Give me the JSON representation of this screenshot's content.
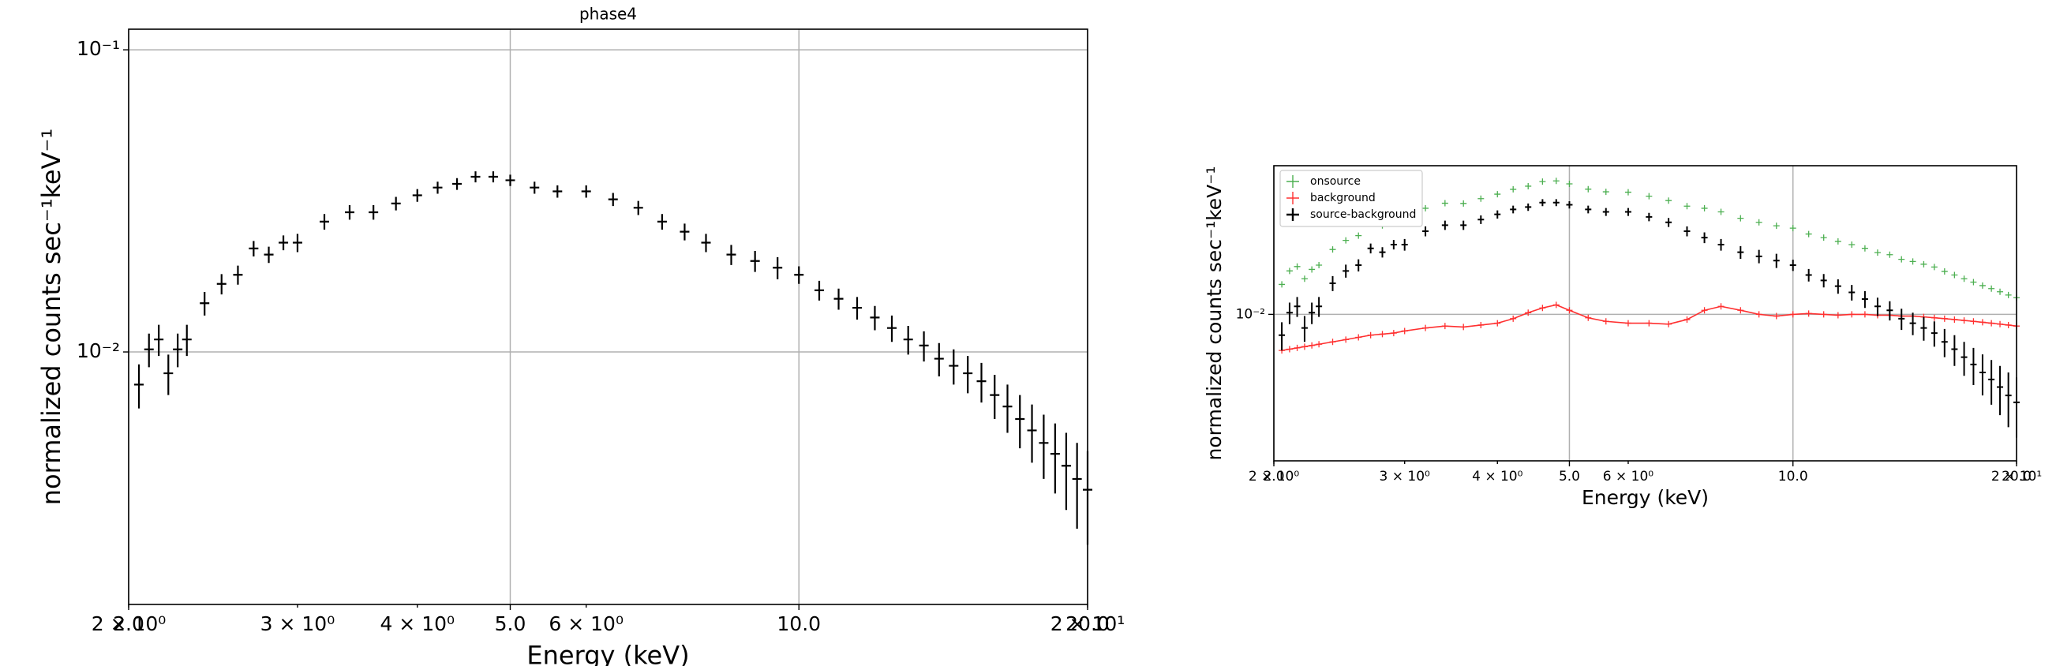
{
  "chart_data": [
    {
      "type": "errorbar",
      "title": "phase4",
      "xlabel": "Energy (keV)",
      "ylabel": "normalized counts sec⁻¹keV⁻¹",
      "xscale": "log",
      "yscale": "log",
      "grid": true,
      "xlim": [
        2.0,
        20.0
      ],
      "ylim": [
        0.00146,
        0.117
      ],
      "xticks": [
        {
          "value": 2.0,
          "label": "2.0"
        },
        {
          "value": 5.0,
          "label": "5.0"
        },
        {
          "value": 10.0,
          "label": "10.0"
        },
        {
          "value": 20.0,
          "label": "20.0"
        }
      ],
      "xticks_minor": [
        {
          "value": 2,
          "label": "2 × 10⁰"
        },
        {
          "value": 3,
          "label": "3 × 10⁰"
        },
        {
          "value": 4,
          "label": "4 × 10⁰"
        },
        {
          "value": 6,
          "label": "6 × 10⁰"
        },
        {
          "value": 20,
          "label": "2 × 10¹"
        }
      ],
      "yticks": [
        {
          "value": 0.01,
          "label": "10⁻²"
        },
        {
          "value": 0.1,
          "label": "10⁻¹"
        }
      ],
      "x": [
        2.05,
        2.1,
        2.15,
        2.2,
        2.25,
        2.3,
        2.4,
        2.5,
        2.6,
        2.7,
        2.8,
        2.9,
        3.0,
        3.2,
        3.4,
        3.6,
        3.8,
        4.0,
        4.2,
        4.4,
        4.6,
        4.8,
        5.0,
        5.3,
        5.6,
        6.0,
        6.4,
        6.8,
        7.2,
        7.6,
        8.0,
        8.5,
        9.0,
        9.5,
        10,
        10.5,
        11,
        11.5,
        12,
        12.5,
        13,
        13.5,
        14,
        14.5,
        15,
        15.5,
        16,
        16.5,
        17,
        17.5,
        18,
        18.5,
        19,
        19.5,
        20
      ],
      "series": [
        {
          "color": "#000000",
          "values": [
            0.0078,
            0.0102,
            0.011,
            0.0085,
            0.0102,
            0.011,
            0.0145,
            0.0168,
            0.018,
            0.022,
            0.021,
            0.023,
            0.023,
            0.027,
            0.029,
            0.029,
            0.031,
            0.033,
            0.035,
            0.036,
            0.038,
            0.038,
            0.037,
            0.035,
            0.034,
            0.034,
            0.032,
            0.03,
            0.027,
            0.025,
            0.023,
            0.021,
            0.02,
            0.019,
            0.018,
            0.016,
            0.015,
            0.014,
            0.013,
            0.012,
            0.011,
            0.0105,
            0.0095,
            0.009,
            0.0085,
            0.008,
            0.0072,
            0.0066,
            0.006,
            0.0055,
            0.005,
            0.0046,
            0.0042,
            0.0038,
            0.0035
          ],
          "yerr": [
            0.0013,
            0.0013,
            0.0013,
            0.0013,
            0.0013,
            0.0013,
            0.0013,
            0.0013,
            0.0013,
            0.0013,
            0.0013,
            0.0013,
            0.0016,
            0.0016,
            0.0016,
            0.0016,
            0.0016,
            0.0016,
            0.0016,
            0.0016,
            0.0016,
            0.0016,
            0.0016,
            0.0016,
            0.0016,
            0.0016,
            0.0016,
            0.0016,
            0.0016,
            0.0016,
            0.0016,
            0.0016,
            0.0016,
            0.0016,
            0.0012,
            0.0012,
            0.0012,
            0.0012,
            0.0012,
            0.0012,
            0.0012,
            0.0012,
            0.0012,
            0.0012,
            0.0012,
            0.0012,
            0.0012,
            0.0012,
            0.0012,
            0.0012,
            0.0012,
            0.0012,
            0.0012,
            0.0012,
            0.0012
          ]
        }
      ]
    },
    {
      "type": "errorbar",
      "xlabel": "Energy (keV)",
      "ylabel": "normalized counts sec⁻¹keV⁻¹",
      "xscale": "log",
      "yscale": "log",
      "grid": true,
      "legend": "upper left",
      "xlim": [
        2.0,
        20.0
      ],
      "ylim": [
        0.00174,
        0.059
      ],
      "xticks": [
        {
          "value": 2.0,
          "label": "2.0"
        },
        {
          "value": 5.0,
          "label": "5.0"
        },
        {
          "value": 10.0,
          "label": "10.0"
        },
        {
          "value": 20.0,
          "label": "20.0"
        }
      ],
      "xticks_minor": [
        {
          "value": 2,
          "label": "2 × 10⁰"
        },
        {
          "value": 3,
          "label": "3 × 10⁰"
        },
        {
          "value": 4,
          "label": "4 × 10⁰"
        },
        {
          "value": 6,
          "label": "6 × 10⁰"
        },
        {
          "value": 20,
          "label": "2 × 10¹"
        }
      ],
      "yticks": [
        {
          "value": 0.01,
          "label": "10⁻²"
        }
      ],
      "x": [
        2.05,
        2.1,
        2.15,
        2.2,
        2.25,
        2.3,
        2.4,
        2.5,
        2.6,
        2.7,
        2.8,
        2.9,
        3.0,
        3.2,
        3.4,
        3.6,
        3.8,
        4.0,
        4.2,
        4.4,
        4.6,
        4.8,
        5.0,
        5.3,
        5.6,
        6.0,
        6.4,
        6.8,
        7.2,
        7.6,
        8.0,
        8.5,
        9.0,
        9.5,
        10,
        10.5,
        11,
        11.5,
        12,
        12.5,
        13,
        13.5,
        14,
        14.5,
        15,
        15.5,
        16,
        16.5,
        17,
        17.5,
        18,
        18.5,
        19,
        19.5,
        20
      ],
      "series": [
        {
          "name": "onsource",
          "color": "#4caf50",
          "values": [
            0.0143,
            0.0168,
            0.0177,
            0.0153,
            0.0171,
            0.018,
            0.0217,
            0.0242,
            0.0256,
            0.0298,
            0.0289,
            0.031,
            0.0312,
            0.0355,
            0.0377,
            0.0376,
            0.0398,
            0.042,
            0.0445,
            0.0462,
            0.0488,
            0.0492,
            0.0475,
            0.0446,
            0.0432,
            0.043,
            0.041,
            0.0389,
            0.0364,
            0.0355,
            0.034,
            0.0315,
            0.03,
            0.0288,
            0.028,
            0.0261,
            0.025,
            0.0239,
            0.023,
            0.022,
            0.0209,
            0.0204,
            0.0193,
            0.0188,
            0.0182,
            0.0176,
            0.0167,
            0.016,
            0.0153,
            0.0147,
            0.0141,
            0.0136,
            0.0131,
            0.0126,
            0.0122
          ]
        },
        {
          "name": "background",
          "color": "#ff3030",
          "line": true,
          "values": [
            0.0065,
            0.0066,
            0.0067,
            0.0068,
            0.0069,
            0.007,
            0.0072,
            0.0074,
            0.0076,
            0.0078,
            0.0079,
            0.008,
            0.0082,
            0.0085,
            0.0087,
            0.0086,
            0.0088,
            0.009,
            0.0095,
            0.0102,
            0.0108,
            0.0112,
            0.0105,
            0.0096,
            0.0092,
            0.009,
            0.009,
            0.0089,
            0.0094,
            0.0105,
            0.011,
            0.0105,
            0.01,
            0.0098,
            0.01,
            0.0101,
            0.01,
            0.0099,
            0.01,
            0.01,
            0.0099,
            0.0099,
            0.0098,
            0.0098,
            0.0097,
            0.0096,
            0.0095,
            0.0094,
            0.0093,
            0.0092,
            0.0091,
            0.009,
            0.0089,
            0.0088,
            0.0087
          ]
        },
        {
          "name": "source-background",
          "color": "#000000",
          "values": [
            0.0078,
            0.0102,
            0.011,
            0.0085,
            0.0102,
            0.011,
            0.0145,
            0.0168,
            0.018,
            0.022,
            0.021,
            0.023,
            0.023,
            0.027,
            0.029,
            0.029,
            0.031,
            0.033,
            0.035,
            0.036,
            0.038,
            0.038,
            0.037,
            0.035,
            0.034,
            0.034,
            0.032,
            0.03,
            0.027,
            0.025,
            0.023,
            0.021,
            0.02,
            0.019,
            0.018,
            0.016,
            0.015,
            0.014,
            0.013,
            0.012,
            0.011,
            0.0105,
            0.0095,
            0.009,
            0.0085,
            0.008,
            0.0072,
            0.0066,
            0.006,
            0.0055,
            0.005,
            0.0046,
            0.0042,
            0.0038,
            0.0035
          ],
          "yerr": [
            0.0013,
            0.0013,
            0.0013,
            0.0013,
            0.0013,
            0.0013,
            0.0013,
            0.0013,
            0.0013,
            0.0013,
            0.0013,
            0.0013,
            0.0016,
            0.0016,
            0.0016,
            0.0016,
            0.0016,
            0.0016,
            0.0016,
            0.0016,
            0.0016,
            0.0016,
            0.0016,
            0.0016,
            0.0016,
            0.0016,
            0.0016,
            0.0016,
            0.0016,
            0.0016,
            0.0016,
            0.0016,
            0.0016,
            0.0016,
            0.0012,
            0.0012,
            0.0012,
            0.0012,
            0.0012,
            0.0012,
            0.0012,
            0.0012,
            0.0012,
            0.0012,
            0.0012,
            0.0012,
            0.0012,
            0.0012,
            0.0012,
            0.0012,
            0.0012,
            0.0012,
            0.0012,
            0.0012,
            0.0012
          ]
        }
      ]
    }
  ]
}
